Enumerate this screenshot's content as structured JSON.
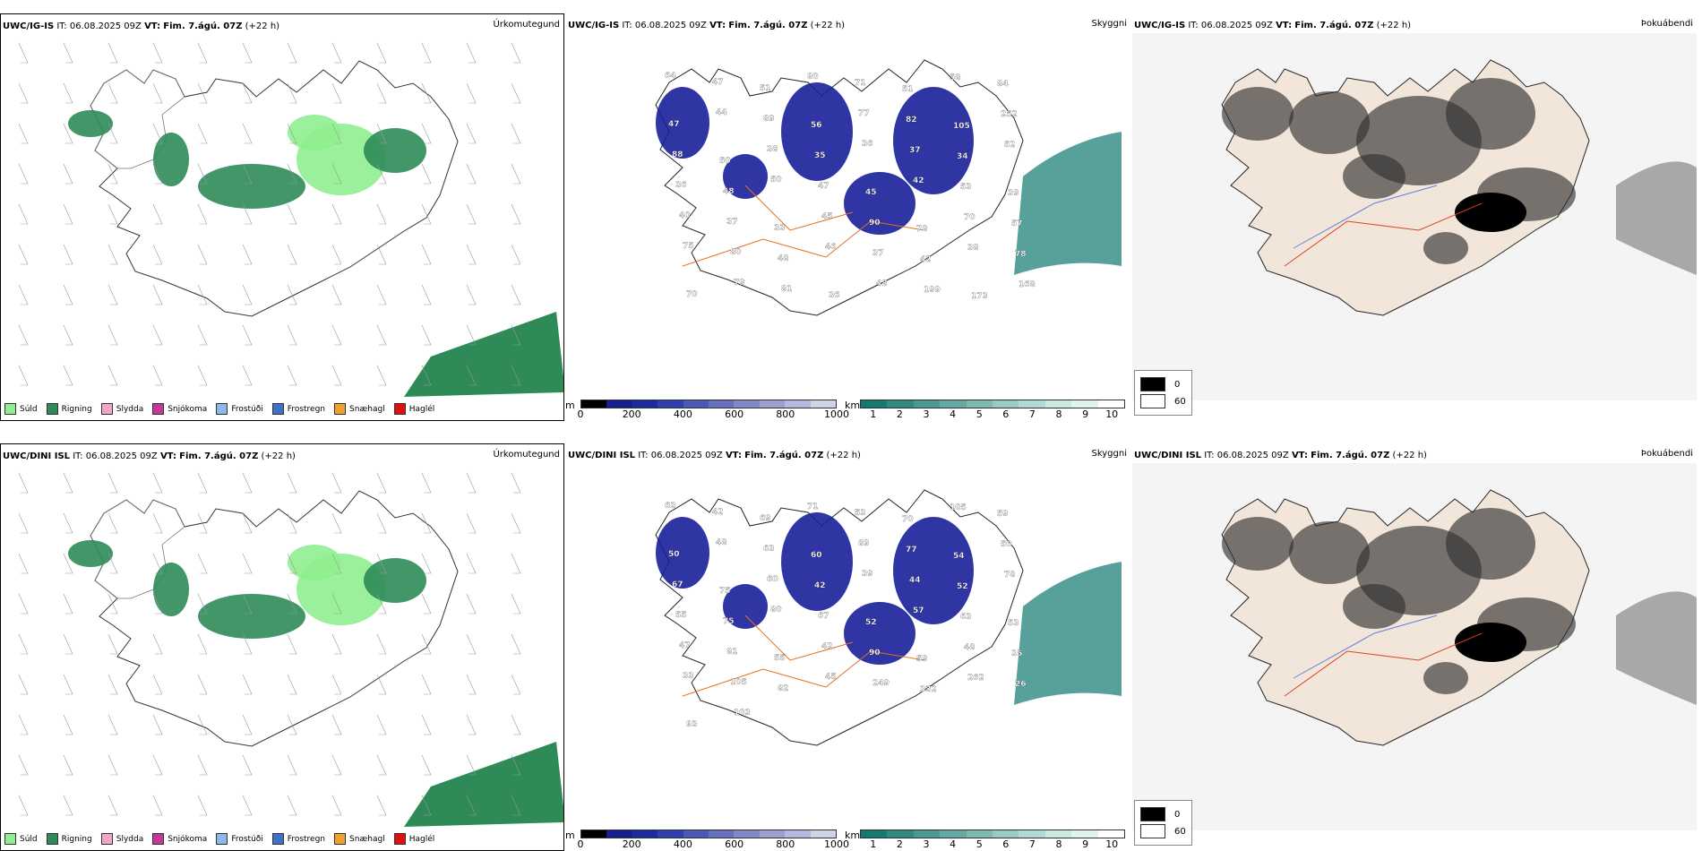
{
  "rows": [
    {
      "model": "UWC/IG-IS",
      "it_label": "IT:",
      "it_value": "06.08.2025 09Z",
      "vt_label": "VT:",
      "vt_value": "Fim. 7.ágú. 07Z",
      "lead": "(+22 h)",
      "cloud_numbers": [
        "64",
        "47",
        "51",
        "80",
        "71",
        "51",
        "58",
        "84",
        "47",
        "44",
        "89",
        "56",
        "77",
        "82",
        "105",
        "252",
        "88",
        "50",
        "38",
        "35",
        "36",
        "37",
        "34",
        "52",
        "36",
        "48",
        "50",
        "47",
        "45",
        "42",
        "53",
        "39",
        "40",
        "37",
        "33",
        "45",
        "90",
        "78",
        "70",
        "57",
        "75",
        "80",
        "48",
        "46",
        "37",
        "42",
        "38",
        "78",
        "70",
        "79",
        "81",
        "36",
        "48",
        "199",
        "173",
        "168"
      ]
    },
    {
      "model": "UWC/DINI ISL",
      "it_label": "IT:",
      "it_value": "06.08.2025 09Z",
      "vt_label": "VT:",
      "vt_value": "Fim. 7.ágú. 07Z",
      "lead": "(+22 h)",
      "cloud_numbers": [
        "63",
        "42",
        "69",
        "71",
        "53",
        "70",
        "105",
        "59",
        "50",
        "48",
        "63",
        "60",
        "89",
        "77",
        "54",
        "50",
        "67",
        "75",
        "60",
        "42",
        "39",
        "44",
        "52",
        "78",
        "55",
        "75",
        "80",
        "67",
        "52",
        "57",
        "63",
        "53",
        "47",
        "81",
        "55",
        "42",
        "90",
        "59",
        "48",
        "35",
        "33",
        "105",
        "82",
        "45",
        "249",
        "332",
        "262",
        "26",
        "93",
        "103"
      ]
    }
  ],
  "panel_titles": [
    "Úrkomutegund",
    "Skyggni",
    "Þokuábendi"
  ],
  "precip_legend": [
    {
      "label": "Súld",
      "color": "#90ee90"
    },
    {
      "label": "Rigning",
      "color": "#2e8b57"
    },
    {
      "label": "Slydda",
      "color": "#f4a6c8"
    },
    {
      "label": "Snjókoma",
      "color": "#c0399c"
    },
    {
      "label": "Frostúði",
      "color": "#8cb8ea"
    },
    {
      "label": "Frostregn",
      "color": "#3f72c4"
    },
    {
      "label": "Snæhagl",
      "color": "#f0a030"
    },
    {
      "label": "Haglél",
      "color": "#e01010"
    }
  ],
  "ceiling_bar": {
    "unit": "m",
    "ticks": [
      "0",
      "200",
      "400",
      "600",
      "800",
      "1000"
    ],
    "colors": [
      "#000000",
      "#141e8c",
      "#1a2ca0",
      "#2e3fb0",
      "#4a58b8",
      "#6670c0",
      "#8088c8",
      "#9aa0d0",
      "#b4b8dc",
      "#d0d2e8"
    ]
  },
  "visibility_bar": {
    "unit": "km",
    "ticks": [
      "1",
      "2",
      "3",
      "4",
      "5",
      "6",
      "7",
      "8",
      "9",
      "10"
    ],
    "colors": [
      "#137a72",
      "#2e8a82",
      "#4a9a92",
      "#64aaa2",
      "#7ebab2",
      "#98cac2",
      "#b2dad2",
      "#cceae4",
      "#e2f2ee",
      "#ffffff"
    ]
  },
  "fog_legend": [
    {
      "label": "0",
      "color": "#000000"
    },
    {
      "label": "60",
      "color": "#ffffff"
    }
  ]
}
